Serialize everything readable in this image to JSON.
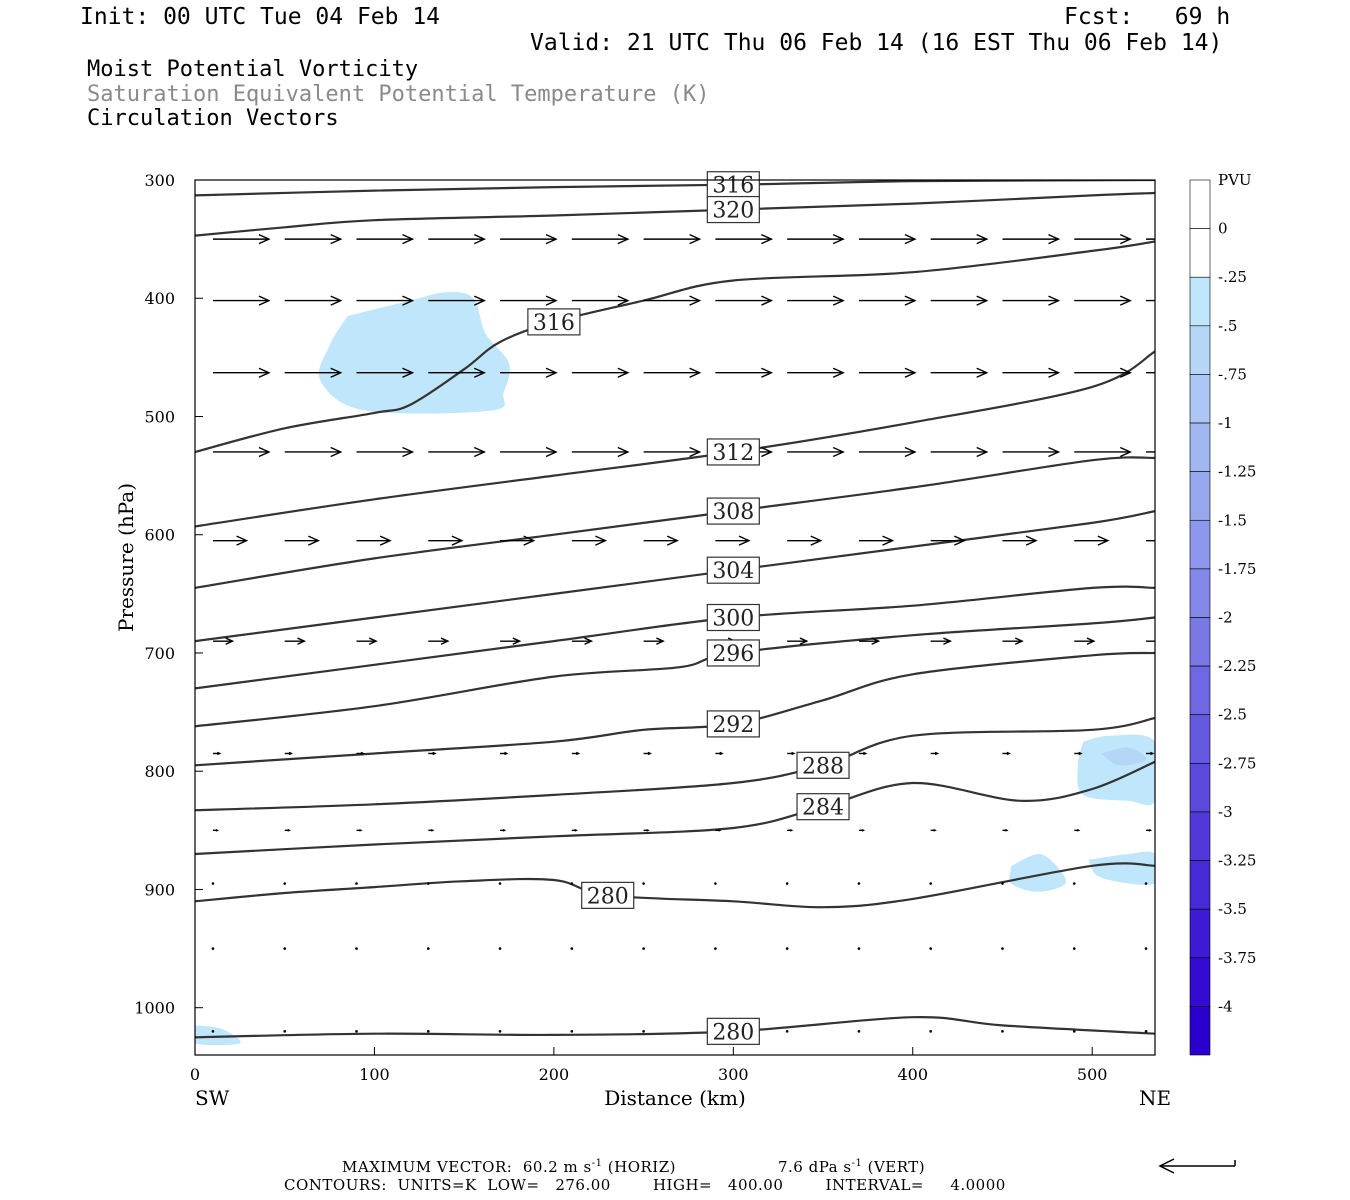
{
  "header": {
    "init": "Init: 00 UTC Tue 04 Feb 14",
    "fcst": "Fcst:   69 h",
    "valid": "Valid: 21 UTC Thu 06 Feb 14 (16 EST Thu 06 Feb 14)",
    "field1": "Moist Potential Vorticity",
    "field2": "Saturation Equivalent Potential Temperature (K)",
    "field3": "Circulation Vectors"
  },
  "footer": {
    "max_vector_label": "MAXIMUM VECTOR:",
    "horiz_value": "60.2 m s",
    "horiz_exp": "-1",
    "horiz_tag": "(HORIZ)",
    "vert_value": "7.6 dPa s",
    "vert_exp": "-1",
    "vert_tag": "(VERT)",
    "contours": "CONTOURS:  UNITS=K  LOW=   276.00        HIGH=   400.00        INTERVAL=     4.0000"
  },
  "chart_data": {
    "type": "cross-section",
    "xlabel": "Distance (km)",
    "ylabel": "Pressure (hPa)",
    "xlim": [
      0,
      535
    ],
    "ylim": [
      1040,
      300
    ],
    "x_ticks": [
      0,
      100,
      200,
      300,
      400,
      500
    ],
    "y_ticks": [
      300,
      400,
      500,
      600,
      700,
      800,
      900,
      1000
    ],
    "x_end_labels": {
      "left": "SW",
      "right": "NE"
    },
    "colorbar": {
      "title": "PVU",
      "labels": [
        "0",
        "-.25",
        "-.5",
        "-.75",
        "-1",
        "-1.25",
        "-1.5",
        "-1.75",
        "-2",
        "-2.25",
        "-2.5",
        "-2.75",
        "-3",
        "-3.25",
        "-3.5",
        "-3.75",
        "-4"
      ],
      "colors": [
        "#ffffff",
        "#ffffff",
        "#bfe6fa",
        "#b5d6f7",
        "#abc6f4",
        "#a1b7f1",
        "#97a7ee",
        "#8d97eb",
        "#8388e8",
        "#7978e5",
        "#6f68e2",
        "#6559df",
        "#5b49dc",
        "#5139d9",
        "#472ad6",
        "#3d1ad3",
        "#330bd0",
        "#2900cd"
      ]
    },
    "theta_e_contours": [
      {
        "value": 316,
        "points": [
          [
            0,
            313
          ],
          [
            100,
            309
          ],
          [
            200,
            306
          ],
          [
            300,
            304
          ],
          [
            400,
            301
          ],
          [
            535,
            300
          ]
        ]
      },
      {
        "value": 320,
        "points": [
          [
            0,
            347
          ],
          [
            50,
            340
          ],
          [
            100,
            334
          ],
          [
            200,
            330
          ],
          [
            300,
            325
          ],
          [
            400,
            320
          ],
          [
            500,
            313
          ],
          [
            535,
            311
          ]
        ]
      },
      {
        "value": 316,
        "points": [
          [
            0,
            530
          ],
          [
            50,
            510
          ],
          [
            100,
            497
          ],
          [
            120,
            490
          ],
          [
            150,
            460
          ],
          [
            170,
            437
          ],
          [
            200,
            420
          ],
          [
            250,
            402
          ],
          [
            300,
            385
          ],
          [
            400,
            378
          ],
          [
            500,
            360
          ],
          [
            535,
            352
          ]
        ]
      },
      {
        "value": 312,
        "points": [
          [
            0,
            593
          ],
          [
            100,
            570
          ],
          [
            200,
            550
          ],
          [
            300,
            530
          ],
          [
            400,
            505
          ],
          [
            500,
            475
          ],
          [
            535,
            445
          ]
        ]
      },
      {
        "value": 308,
        "points": [
          [
            0,
            645
          ],
          [
            100,
            620
          ],
          [
            200,
            600
          ],
          [
            300,
            580
          ],
          [
            400,
            560
          ],
          [
            500,
            537
          ],
          [
            535,
            535
          ]
        ]
      },
      {
        "value": 304,
        "points": [
          [
            0,
            690
          ],
          [
            100,
            670
          ],
          [
            200,
            650
          ],
          [
            300,
            630
          ],
          [
            400,
            610
          ],
          [
            500,
            590
          ],
          [
            535,
            580
          ]
        ]
      },
      {
        "value": 300,
        "points": [
          [
            0,
            730
          ],
          [
            100,
            710
          ],
          [
            200,
            690
          ],
          [
            300,
            670
          ],
          [
            400,
            660
          ],
          [
            500,
            645
          ],
          [
            535,
            645
          ]
        ]
      },
      {
        "value": 296,
        "points": [
          [
            0,
            762
          ],
          [
            100,
            745
          ],
          [
            200,
            720
          ],
          [
            270,
            712
          ],
          [
            300,
            700
          ],
          [
            400,
            685
          ],
          [
            500,
            675
          ],
          [
            535,
            670
          ]
        ]
      },
      {
        "value": 292,
        "points": [
          [
            0,
            795
          ],
          [
            100,
            785
          ],
          [
            200,
            775
          ],
          [
            250,
            765
          ],
          [
            300,
            760
          ],
          [
            350,
            740
          ],
          [
            400,
            718
          ],
          [
            500,
            702
          ],
          [
            535,
            700
          ]
        ]
      },
      {
        "value": 288,
        "points": [
          [
            0,
            833
          ],
          [
            100,
            828
          ],
          [
            200,
            820
          ],
          [
            300,
            810
          ],
          [
            350,
            795
          ],
          [
            400,
            770
          ],
          [
            500,
            765
          ],
          [
            535,
            755
          ]
        ]
      },
      {
        "value": 284,
        "points": [
          [
            0,
            870
          ],
          [
            100,
            862
          ],
          [
            200,
            855
          ],
          [
            300,
            848
          ],
          [
            350,
            830
          ],
          [
            400,
            810
          ],
          [
            460,
            825
          ],
          [
            500,
            815
          ],
          [
            535,
            792
          ]
        ]
      },
      {
        "value": 280,
        "points": [
          [
            0,
            910
          ],
          [
            50,
            903
          ],
          [
            100,
            898
          ],
          [
            150,
            893
          ],
          [
            200,
            892
          ],
          [
            230,
            905
          ],
          [
            300,
            910
          ],
          [
            350,
            915
          ],
          [
            400,
            908
          ],
          [
            500,
            880
          ],
          [
            535,
            880
          ]
        ]
      },
      {
        "value": 280,
        "points": [
          [
            0,
            1025
          ],
          [
            100,
            1022
          ],
          [
            200,
            1023
          ],
          [
            300,
            1020
          ],
          [
            400,
            1008
          ],
          [
            450,
            1015
          ],
          [
            535,
            1022
          ]
        ]
      }
    ],
    "pv_regions": [
      {
        "value": -0.25,
        "points": [
          [
            85,
            415
          ],
          [
            120,
            402
          ],
          [
            140,
            395
          ],
          [
            155,
            400
          ],
          [
            162,
            430
          ],
          [
            175,
            455
          ],
          [
            172,
            480
          ],
          [
            165,
            495
          ],
          [
            95,
            495
          ],
          [
            70,
            470
          ],
          [
            75,
            440
          ]
        ]
      },
      {
        "value": -0.25,
        "points": [
          [
            495,
            775
          ],
          [
            510,
            770
          ],
          [
            535,
            775
          ],
          [
            535,
            825
          ],
          [
            520,
            825
          ],
          [
            495,
            820
          ],
          [
            492,
            795
          ]
        ]
      },
      {
        "value": -0.5,
        "points": [
          [
            505,
            785
          ],
          [
            520,
            780
          ],
          [
            530,
            790
          ],
          [
            515,
            795
          ]
        ]
      },
      {
        "value": -0.25,
        "points": [
          [
            455,
            880
          ],
          [
            470,
            870
          ],
          [
            480,
            880
          ],
          [
            485,
            895
          ],
          [
            470,
            902
          ],
          [
            455,
            895
          ]
        ]
      },
      {
        "value": -0.25,
        "points": [
          [
            0,
            1015
          ],
          [
            15,
            1018
          ],
          [
            25,
            1030
          ],
          [
            0,
            1030
          ]
        ]
      },
      {
        "value": -0.25,
        "points": [
          [
            498,
            875
          ],
          [
            520,
            870
          ],
          [
            535,
            870
          ],
          [
            535,
            895
          ],
          [
            505,
            890
          ]
        ]
      }
    ],
    "vector_rows": [
      {
        "p": 350,
        "u": 1.0,
        "w": 0.0
      },
      {
        "p": 402,
        "u": 1.0,
        "w": 0.0
      },
      {
        "p": 463,
        "u": 1.0,
        "w": 0.0
      },
      {
        "p": 530,
        "u": 1.0,
        "w": 0.0
      },
      {
        "p": 605,
        "u": 0.6,
        "w": 0.0
      },
      {
        "p": 690,
        "u": 0.35,
        "w": 0.0
      },
      {
        "p": 785,
        "u": 0.12,
        "w": 0.0
      },
      {
        "p": 850,
        "u": 0.08,
        "w": 0.0
      },
      {
        "p": 895,
        "u": 0.05,
        "w": 0.0
      },
      {
        "p": 950,
        "u": 0.02,
        "w": 0.0
      },
      {
        "p": 1020,
        "u": 0.02,
        "w": 0.0
      }
    ],
    "vector_x": [
      10,
      50,
      90,
      130,
      170,
      210,
      250,
      290,
      330,
      370,
      410,
      450,
      490,
      530
    ]
  }
}
